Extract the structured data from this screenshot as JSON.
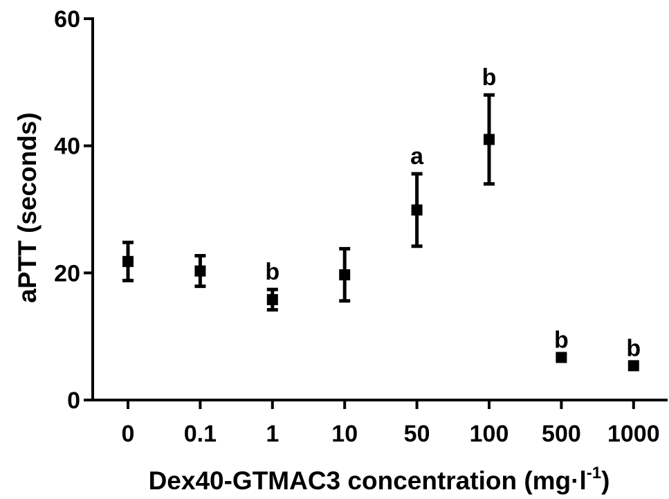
{
  "chart_data": {
    "type": "scatter",
    "xlabel": "Dex40-GTMAC3 concentration (mg·l",
    "xlabel_superscript": "-1",
    "xlabel_suffix": ")",
    "ylabel": "aPTT (seconds)",
    "categories": [
      "0",
      "0.1",
      "1",
      "10",
      "50",
      "100",
      "500",
      "1000"
    ],
    "ylim": [
      0,
      60
    ],
    "yticks": [
      "0",
      "20",
      "40",
      "60"
    ],
    "grid": false,
    "series": [
      {
        "values": [
          21.8,
          20.3,
          15.8,
          19.7,
          29.9,
          41.0,
          6.7,
          5.4
        ],
        "error_low": [
          18.8,
          17.9,
          14.2,
          15.6,
          24.2,
          34.0,
          6.7,
          5.4
        ],
        "error_high": [
          24.8,
          22.7,
          17.4,
          23.8,
          35.6,
          48.0,
          6.7,
          5.4
        ],
        "annotations": [
          "",
          "",
          "b",
          "",
          "a",
          "b",
          "b",
          "b"
        ]
      }
    ]
  }
}
